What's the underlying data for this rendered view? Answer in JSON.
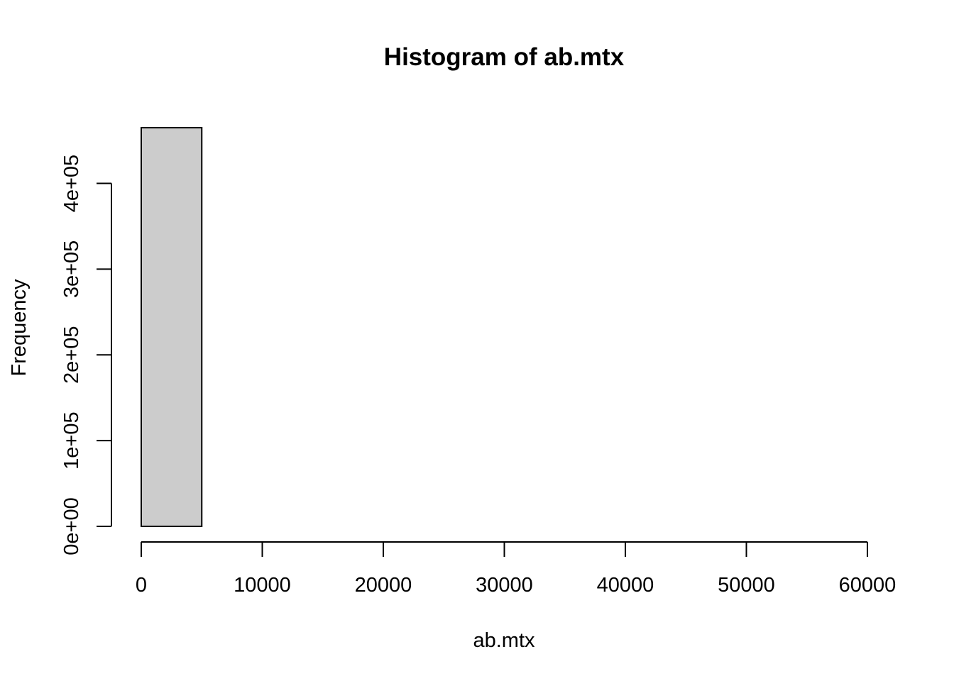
{
  "chart_data": {
    "type": "bar",
    "title": "Histogram of ab.mtx",
    "xlabel": "ab.mtx",
    "ylabel": "Frequency",
    "bin_width": 5000,
    "bins": [
      {
        "from": 0,
        "to": 5000,
        "count": 465000
      },
      {
        "from": 5000,
        "to": 10000,
        "count": 0
      },
      {
        "from": 10000,
        "to": 15000,
        "count": 0
      },
      {
        "from": 15000,
        "to": 20000,
        "count": 0
      },
      {
        "from": 20000,
        "to": 25000,
        "count": 0
      },
      {
        "from": 25000,
        "to": 30000,
        "count": 0
      },
      {
        "from": 30000,
        "to": 35000,
        "count": 0
      },
      {
        "from": 35000,
        "to": 40000,
        "count": 0
      },
      {
        "from": 40000,
        "to": 45000,
        "count": 0
      },
      {
        "from": 45000,
        "to": 50000,
        "count": 0
      },
      {
        "from": 50000,
        "to": 55000,
        "count": 0
      },
      {
        "from": 55000,
        "to": 60000,
        "count": 0
      }
    ],
    "xlim": [
      0,
      60000
    ],
    "ylim": [
      0,
      465000
    ],
    "x_ticks": [
      0,
      10000,
      20000,
      30000,
      40000,
      50000,
      60000
    ],
    "x_tick_labels": [
      "0",
      "10000",
      "20000",
      "30000",
      "40000",
      "50000",
      "60000"
    ],
    "y_ticks": [
      0,
      100000,
      200000,
      300000,
      400000
    ],
    "y_tick_labels": [
      "0e+00",
      "1e+05",
      "2e+05",
      "3e+05",
      "4e+05"
    ],
    "bar_fill": "#cccccc",
    "bar_stroke": "#000000",
    "grid": false,
    "legend": "none"
  }
}
